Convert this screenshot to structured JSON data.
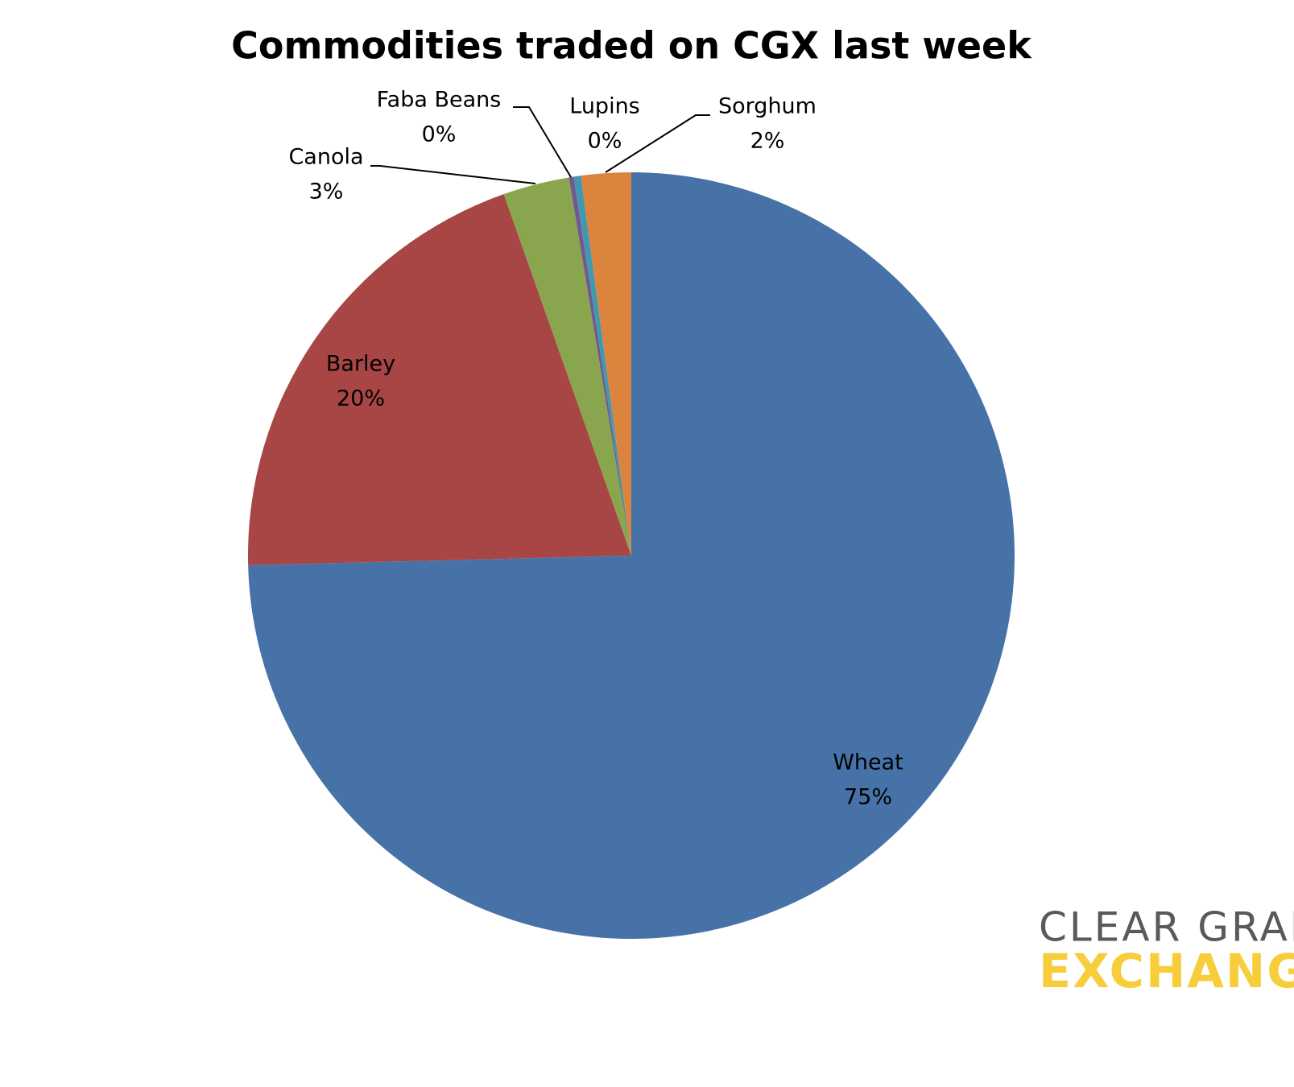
{
  "chart_data": {
    "type": "pie",
    "title": "Commodities traded on CGX last week",
    "categories": [
      "Wheat",
      "Barley",
      "Canola",
      "Faba Beans",
      "Lupins",
      "Sorghum"
    ],
    "values": [
      74.6,
      20.0,
      2.8,
      0.2,
      0.3,
      2.1
    ],
    "value_labels": [
      "75%",
      "20%",
      "3%",
      "0%",
      "0%",
      "2%"
    ],
    "colors": [
      "#4672a8",
      "#a84545",
      "#89a54e",
      "#71588f",
      "#4198af",
      "#db843d"
    ]
  },
  "logo": {
    "line1": "CLEAR GRAIN",
    "line2": "EXCHANGE"
  }
}
